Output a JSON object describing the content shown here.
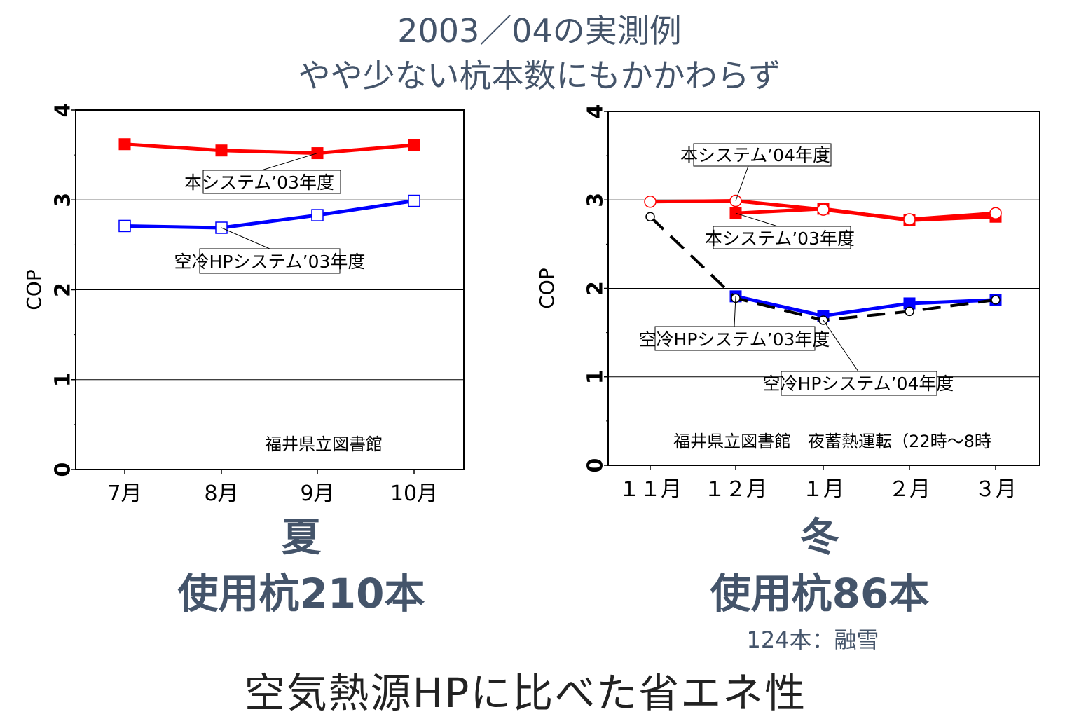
{
  "title_line1": "2003／04の実測例",
  "title_line2": "やや少ない杭本数にもかかわらず",
  "summer": {
    "season": "夏",
    "piles": "使用杭210本"
  },
  "winter": {
    "season": "冬",
    "piles": "使用杭86本",
    "note": "124本：融雪"
  },
  "conclusion": "空気熱源HPに比べた省エネ性",
  "chart_data": [
    {
      "type": "line",
      "ylabel": "COP",
      "ylim": [
        0,
        4
      ],
      "yticks": [
        "0",
        "1",
        "2",
        "3",
        "4"
      ],
      "categories": [
        "7月",
        "8月",
        "9月",
        "10月"
      ],
      "series": [
        {
          "name": "本システム’03年度",
          "color": "#ff0000",
          "marker": "filled-square",
          "values": [
            3.62,
            3.55,
            3.52,
            3.61
          ]
        },
        {
          "name": "空冷HPシステム’03年度",
          "color": "#0000ff",
          "marker": "open-square",
          "values": [
            2.71,
            2.69,
            2.83,
            2.99
          ]
        }
      ],
      "annotation": "福井県立図書館"
    },
    {
      "type": "line",
      "ylabel": "COP",
      "ylim": [
        0,
        4
      ],
      "yticks": [
        "0",
        "1",
        "2",
        "3",
        "4"
      ],
      "categories": [
        "１１月",
        "１２月",
        "１月",
        "２月",
        "３月"
      ],
      "series": [
        {
          "name": "本システム’03年度",
          "color": "#ff0000",
          "marker": "filled-square",
          "values": [
            null,
            2.85,
            2.9,
            2.77,
            2.81
          ]
        },
        {
          "name": "本システム’04年度",
          "color": "#ff0000",
          "marker": "open-circle",
          "values": [
            2.98,
            2.99,
            2.89,
            2.78,
            2.85
          ]
        },
        {
          "name": "空冷HPシステム’03年度",
          "color": "#0000ff",
          "marker": "filled-square",
          "values": [
            null,
            1.91,
            1.69,
            1.83,
            1.87
          ]
        },
        {
          "name": "空冷HPシステム’04年度",
          "color": "#000000",
          "marker": "open-circle",
          "dash": true,
          "values": [
            2.81,
            1.89,
            1.64,
            1.74,
            1.87
          ]
        }
      ],
      "annotation": "福井県立図書館　夜蓄熱運転（22時～8時"
    }
  ]
}
